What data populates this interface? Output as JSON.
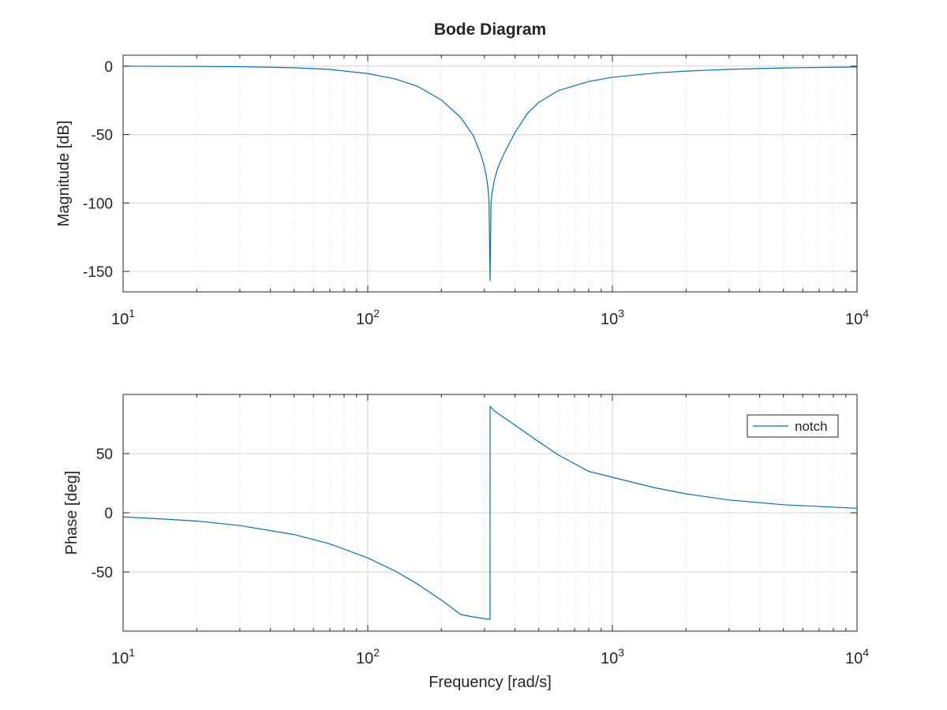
{
  "figure": {
    "title": "Bode Diagram",
    "line_color": "#0072BD"
  },
  "chart_data": [
    {
      "type": "line",
      "panel": "magnitude",
      "title": "Bode Diagram",
      "xlabel": "",
      "ylabel": "Magnitude [dB]",
      "xscale": "log",
      "xlim": [
        10,
        10000
      ],
      "ylim": [
        -165,
        8
      ],
      "grid": true,
      "x_tick_labels": [
        {
          "base": "10",
          "exp": "1"
        },
        {
          "base": "10",
          "exp": "2"
        },
        {
          "base": "10",
          "exp": "3"
        },
        {
          "base": "10",
          "exp": "4"
        }
      ],
      "y_ticks": [
        0,
        -50,
        -100,
        -150
      ],
      "y_tick_labels": [
        "0",
        "-50",
        "-100",
        "-150"
      ],
      "series": [
        {
          "name": "notch",
          "color": "#0072BD",
          "x": [
            10,
            15,
            20,
            30,
            50,
            70,
            100,
            130,
            160,
            200,
            240,
            270,
            290,
            300,
            305,
            310,
            313,
            316.2,
            319,
            322,
            326,
            330,
            340,
            360,
            400,
            450,
            500,
            600,
            800,
            1000,
            1500,
            2000,
            3000,
            5000,
            10000
          ],
          "y": [
            -0.04,
            -0.1,
            -0.17,
            -0.4,
            -1.16,
            -2.4,
            -5.4,
            -9.4,
            -14.8,
            -24.7,
            -37.6,
            -50.8,
            -64.5,
            -73.8,
            -80,
            -88.8,
            -97.9,
            -157,
            -100,
            -93.2,
            -87.1,
            -82.6,
            -74.6,
            -64.2,
            -48.4,
            -34.4,
            -26.5,
            -17.9,
            -11.2,
            -8.1,
            -5.0,
            -3.6,
            -2.3,
            -1.3,
            -0.6
          ]
        }
      ]
    },
    {
      "type": "line",
      "panel": "phase",
      "title": "",
      "xlabel": "Frequency [rad/s]",
      "ylabel": "Phase [deg]",
      "xscale": "log",
      "xlim": [
        10,
        10000
      ],
      "ylim": [
        -100,
        100
      ],
      "grid": true,
      "legend": {
        "position": "top-right",
        "entries": [
          "notch"
        ]
      },
      "x_tick_labels": [
        {
          "base": "10",
          "exp": "1"
        },
        {
          "base": "10",
          "exp": "2"
        },
        {
          "base": "10",
          "exp": "3"
        },
        {
          "base": "10",
          "exp": "4"
        }
      ],
      "y_ticks": [
        50,
        0,
        -50
      ],
      "y_tick_labels": [
        "50",
        "0",
        "-50"
      ],
      "series": [
        {
          "name": "notch",
          "color": "#0072BD",
          "x": [
            10,
            15,
            20,
            30,
            50,
            70,
            100,
            130,
            160,
            200,
            240,
            270,
            300,
            316,
            316.3,
            330,
            400,
            500,
            600,
            800,
            1000,
            1500,
            2000,
            3000,
            5000,
            10000
          ],
          "y": [
            -3.5,
            -5.4,
            -7.0,
            -10.8,
            -18.4,
            -26.3,
            -38.1,
            -49.4,
            -60.3,
            -73.8,
            -86.0,
            -88.0,
            -89.5,
            -90.0,
            89.8,
            86.0,
            74.0,
            60.0,
            49.0,
            35.0,
            30.0,
            21.0,
            16.0,
            10.8,
            6.8,
            3.8
          ]
        }
      ]
    }
  ]
}
